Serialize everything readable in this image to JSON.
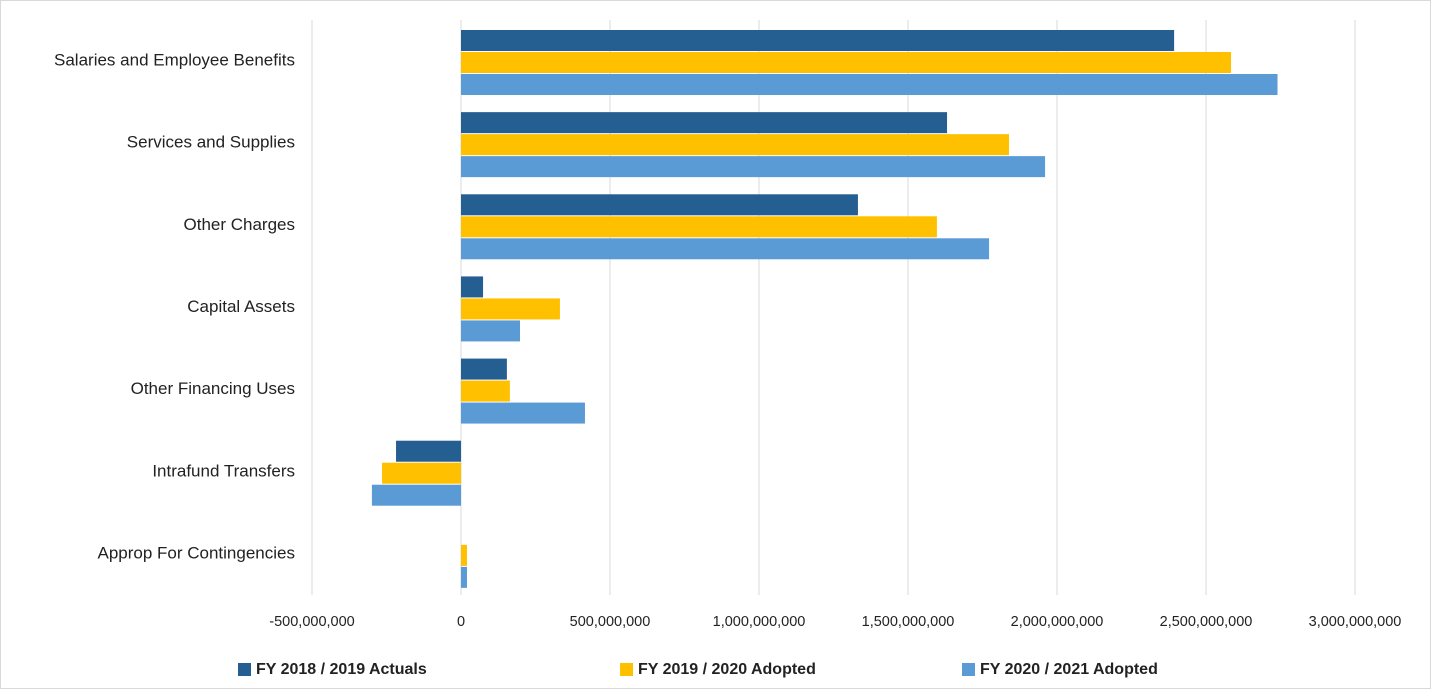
{
  "chart_data": {
    "type": "bar",
    "orientation": "horizontal",
    "categories": [
      "Salaries and Employee Benefits",
      "Services and Supplies",
      "Other Charges",
      "Capital Assets",
      "Other Financing Uses",
      "Intrafund Transfers",
      "Approp For Contingencies"
    ],
    "series": [
      {
        "name": "FY 2018 / 2019 Actuals",
        "color": "#255e91",
        "values": [
          2393000000,
          1631000000,
          1332000000,
          74000000,
          154000000,
          -218000000,
          0
        ]
      },
      {
        "name": "FY 2019 / 2020 Adopted",
        "color": "#ffc000",
        "values": [
          2584000000,
          1839000000,
          1597000000,
          332000000,
          164000000,
          -265000000,
          20000000
        ]
      },
      {
        "name": "FY 2020 / 2021 Adopted",
        "color": "#5b9bd5",
        "values": [
          2740000000,
          1960000000,
          1772000000,
          198000000,
          416000000,
          -299000000,
          20000000
        ]
      }
    ],
    "xlim": [
      -500000000,
      3000000000
    ],
    "xticks": [
      {
        "value": -500000000,
        "label": "-500,000,000"
      },
      0,
      {
        "value": 500000000,
        "label": "500,000,000"
      },
      {
        "value": 1000000000,
        "label": "1,000,000,000"
      },
      {
        "value": 1500000000,
        "label": "1,500,000,000"
      },
      {
        "value": 2000000000,
        "label": "2,000,000,000"
      },
      {
        "value": 2500000000,
        "label": "2,500,000,000"
      },
      {
        "value": 3000000000,
        "label": "3,000,000,000"
      }
    ],
    "grid": true,
    "legend": "bottom"
  }
}
